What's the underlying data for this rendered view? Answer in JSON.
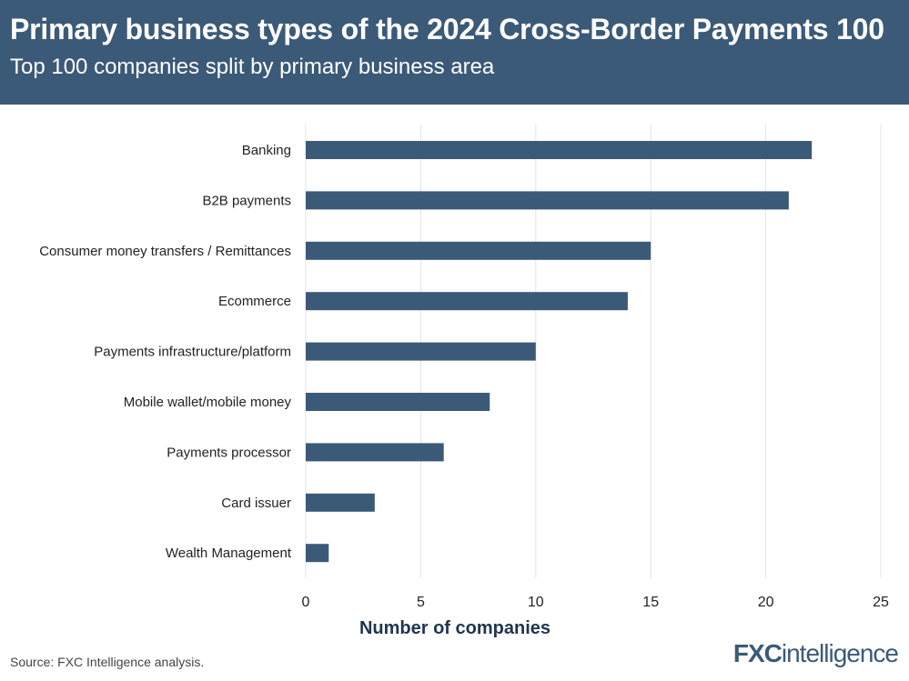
{
  "header": {
    "title": "Primary business types of the 2024 Cross-Border Payments 100",
    "subtitle": "Top 100 companies split by primary business area"
  },
  "footer": {
    "source": "Source: FXC Intelligence analysis.",
    "logo_text_bold": "FXC",
    "logo_text_rest": "intelligence"
  },
  "colors": {
    "header_bg": "#3b5a78",
    "bar": "#3b5a78",
    "grid": "#e3e3e3"
  },
  "chart_data": {
    "type": "bar",
    "orientation": "horizontal",
    "categories": [
      "Banking",
      "B2B payments",
      "Consumer money transfers / Remittances",
      "Ecommerce",
      "Payments infrastructure/platform",
      "Mobile wallet/mobile money",
      "Payments processor",
      "Card issuer",
      "Wealth Management"
    ],
    "values": [
      22,
      21,
      15,
      14,
      10,
      8,
      6,
      3,
      1
    ],
    "xlabel": "Number of companies",
    "ylabel": "",
    "xlim": [
      0,
      25
    ],
    "xticks": [
      0,
      5,
      10,
      15,
      20,
      25
    ],
    "grid": "vertical"
  }
}
